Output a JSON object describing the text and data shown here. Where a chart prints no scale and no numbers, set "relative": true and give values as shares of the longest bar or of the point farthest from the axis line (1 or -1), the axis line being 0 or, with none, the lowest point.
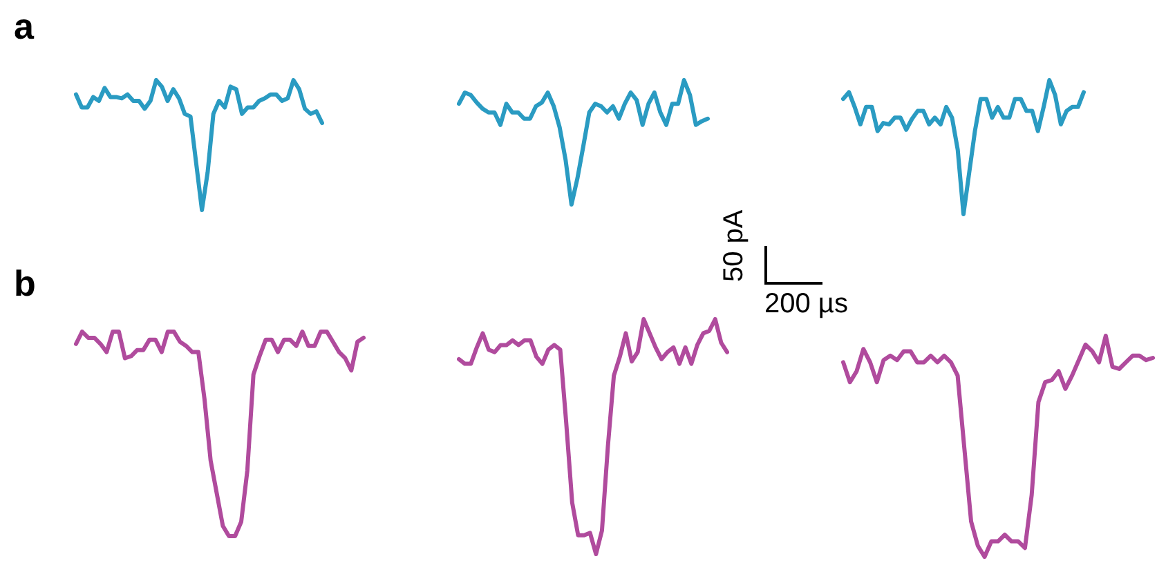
{
  "chart_data": [
    {
      "type": "line",
      "title": "a",
      "relative": true,
      "tick_labels": false,
      "categories": [
        null,
        null,
        null,
        null,
        null,
        null,
        null,
        null,
        null,
        null,
        null,
        null,
        null,
        null,
        null,
        null,
        null,
        null,
        null,
        null,
        null,
        null,
        null,
        null,
        null,
        null,
        null,
        null,
        null,
        null,
        null,
        null,
        null,
        null,
        null,
        null,
        null,
        null,
        null,
        null,
        null,
        null,
        null,
        null
      ],
      "series": [
        {
          "color": "#2a9bc2",
          "values": [
            0.89,
            0.79,
            0.79,
            0.87,
            0.84,
            0.94,
            0.87,
            0.87,
            0.86,
            0.89,
            0.84,
            0.84,
            0.78,
            0.84,
            1,
            0.95,
            0.84,
            0.93,
            0.86,
            0.74,
            0.72,
            0.36,
            0,
            0.29,
            0.74,
            0.84,
            0.79,
            0.95,
            0.93,
            0.74,
            0.79,
            0.79,
            0.84,
            0.86,
            0.89,
            0.89,
            0.84,
            0.86,
            1,
            0.93,
            0.78,
            0.74,
            0.76,
            0.67
          ]
        }
      ]
    },
    {
      "type": "line",
      "relative": true,
      "tick_labels": false,
      "annotations": [
        "50 pA",
        "200 µs"
      ],
      "categories": [
        null,
        null,
        null,
        null,
        null,
        null,
        null,
        null,
        null,
        null,
        null,
        null,
        null,
        null,
        null,
        null,
        null,
        null,
        null,
        null,
        null,
        null,
        null,
        null,
        null,
        null,
        null,
        null,
        null,
        null,
        null,
        null,
        null,
        null,
        null,
        null,
        null,
        null,
        null,
        null,
        null,
        null,
        null
      ],
      "series": [
        {
          "color": "#2a9bc2",
          "values": [
            0.81,
            0.9,
            0.88,
            0.82,
            0.77,
            0.74,
            0.74,
            0.64,
            0.81,
            0.74,
            0.74,
            0.69,
            0.69,
            0.79,
            0.82,
            0.9,
            0.79,
            0.62,
            0.36,
            0,
            0.21,
            0.47,
            0.74,
            0.81,
            0.79,
            0.74,
            0.79,
            0.69,
            0.81,
            0.9,
            0.84,
            0.64,
            0.81,
            0.9,
            0.74,
            0.64,
            0.81,
            0.81,
            1,
            0.88,
            0.64,
            0.67,
            0.69
          ]
        }
      ]
    },
    {
      "type": "line",
      "relative": true,
      "tick_labels": false,
      "categories": [
        null,
        null,
        null,
        null,
        null,
        null,
        null,
        null,
        null,
        null,
        null,
        null,
        null,
        null,
        null,
        null,
        null,
        null,
        null,
        null,
        null,
        null,
        null,
        null,
        null,
        null,
        null,
        null,
        null,
        null,
        null,
        null,
        null,
        null,
        null,
        null,
        null,
        null,
        null,
        null,
        null,
        null,
        null
      ],
      "series": [
        {
          "color": "#2a9bc2",
          "values": [
            0.86,
            0.91,
            0.8,
            0.67,
            0.8,
            0.8,
            0.62,
            0.68,
            0.67,
            0.72,
            0.72,
            0.63,
            0.71,
            0.77,
            0.77,
            0.67,
            0.72,
            0.67,
            0.8,
            0.72,
            0.48,
            0,
            0.31,
            0.62,
            0.86,
            0.86,
            0.72,
            0.8,
            0.72,
            0.72,
            0.86,
            0.86,
            0.77,
            0.77,
            0.62,
            0.8,
            1,
            0.89,
            0.67,
            0.77,
            0.8,
            0.8,
            0.91
          ]
        }
      ]
    },
    {
      "type": "line",
      "title": "b",
      "relative": true,
      "tick_labels": false,
      "categories": [
        null,
        null,
        null,
        null,
        null,
        null,
        null,
        null,
        null,
        null,
        null,
        null,
        null,
        null,
        null,
        null,
        null,
        null,
        null,
        null,
        null,
        null,
        null,
        null,
        null,
        null,
        null,
        null,
        null,
        null,
        null,
        null,
        null,
        null,
        null,
        null,
        null,
        null,
        null,
        null,
        null,
        null,
        null,
        null,
        null,
        null,
        null,
        null
      ],
      "series": [
        {
          "color": "#b04b9d",
          "values": [
            0.94,
            1,
            0.97,
            0.97,
            0.94,
            0.9,
            1,
            1,
            0.87,
            0.88,
            0.91,
            0.91,
            0.96,
            0.96,
            0.9,
            1,
            1,
            0.95,
            0.93,
            0.9,
            0.9,
            0.67,
            0.37,
            0.21,
            0.05,
            0,
            0,
            0.07,
            0.32,
            0.79,
            0.88,
            0.96,
            0.96,
            0.9,
            0.96,
            0.96,
            0.93,
            1,
            0.93,
            0.93,
            1,
            1,
            0.95,
            0.9,
            0.87,
            0.81,
            0.95,
            0.97
          ]
        }
      ]
    },
    {
      "type": "line",
      "relative": true,
      "tick_labels": false,
      "categories": [
        null,
        null,
        null,
        null,
        null,
        null,
        null,
        null,
        null,
        null,
        null,
        null,
        null,
        null,
        null,
        null,
        null,
        null,
        null,
        null,
        null,
        null,
        null,
        null,
        null,
        null,
        null,
        null,
        null,
        null,
        null,
        null,
        null,
        null,
        null,
        null,
        null,
        null,
        null,
        null,
        null,
        null,
        null,
        null,
        null,
        null
      ],
      "series": [
        {
          "color": "#b04b9d",
          "values": [
            0.83,
            0.81,
            0.81,
            0.88,
            0.94,
            0.87,
            0.86,
            0.89,
            0.89,
            0.91,
            0.89,
            0.91,
            0.91,
            0.84,
            0.81,
            0.87,
            0.89,
            0.87,
            0.56,
            0.22,
            0.08,
            0.08,
            0.09,
            0,
            0.1,
            0.46,
            0.76,
            0.84,
            0.94,
            0.82,
            0.86,
            1,
            0.94,
            0.88,
            0.83,
            0.86,
            0.88,
            0.81,
            0.88,
            0.81,
            0.89,
            0.94,
            0.95,
            1,
            0.9,
            0.86
          ]
        }
      ]
    },
    {
      "type": "line",
      "relative": true,
      "tick_labels": false,
      "categories": [
        null,
        null,
        null,
        null,
        null,
        null,
        null,
        null,
        null,
        null,
        null,
        null,
        null,
        null,
        null,
        null,
        null,
        null,
        null,
        null,
        null,
        null,
        null,
        null,
        null,
        null,
        null,
        null,
        null,
        null,
        null,
        null,
        null,
        null,
        null,
        null,
        null,
        null,
        null,
        null,
        null,
        null,
        null,
        null,
        null,
        null,
        null
      ],
      "series": [
        {
          "color": "#b04b9d",
          "values": [
            0.88,
            0.79,
            0.84,
            0.94,
            0.88,
            0.79,
            0.89,
            0.91,
            0.89,
            0.93,
            0.93,
            0.88,
            0.88,
            0.91,
            0.88,
            0.91,
            0.88,
            0.82,
            0.49,
            0.16,
            0.05,
            0,
            0.07,
            0.07,
            0.1,
            0.07,
            0.07,
            0.04,
            0.28,
            0.7,
            0.79,
            0.8,
            0.84,
            0.76,
            0.82,
            0.89,
            0.96,
            0.93,
            0.88,
            1,
            0.86,
            0.85,
            0.88,
            0.91,
            0.91,
            0.89,
            0.9
          ]
        }
      ]
    }
  ]
}
